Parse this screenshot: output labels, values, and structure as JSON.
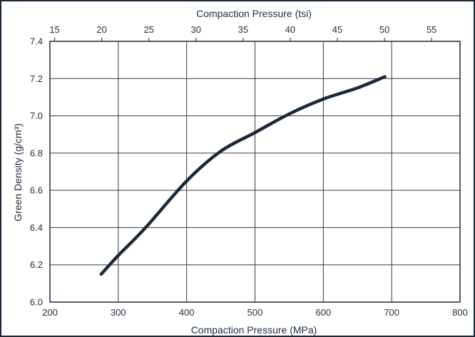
{
  "chart_data": {
    "type": "line",
    "title": "",
    "xlabel": "Compaction Pressure (MPa)",
    "xlabel_top": "Compaction Pressure (tsi)",
    "ylabel": "Green Density (g/cm³)",
    "xlim": [
      200,
      800
    ],
    "ylim": [
      6.0,
      7.4
    ],
    "x_ticks": [
      "200",
      "300",
      "400",
      "500",
      "600",
      "700",
      "800"
    ],
    "x_tick_values": [
      200,
      300,
      400,
      500,
      600,
      700,
      800
    ],
    "x_top_ticks": [
      "15",
      "20",
      "25",
      "30",
      "35",
      "40",
      "45",
      "50",
      "55"
    ],
    "x_top_tick_values": [
      15,
      20,
      25,
      30,
      35,
      40,
      45,
      50,
      55
    ],
    "tsi_to_mpa": 13.79,
    "y_ticks": [
      "6.0",
      "6.2",
      "6.4",
      "6.6",
      "6.8",
      "7.0",
      "7.2",
      "7.4"
    ],
    "y_tick_values": [
      6.0,
      6.2,
      6.4,
      6.6,
      6.8,
      7.0,
      7.2,
      7.4
    ],
    "grid": true,
    "legend": "none",
    "series": [
      {
        "color": "#1b2a3a",
        "x": [
          275,
          300,
          340,
          400,
          450,
          500,
          550,
          600,
          650,
          690
        ],
        "y": [
          6.15,
          6.25,
          6.4,
          6.65,
          6.81,
          6.91,
          7.01,
          7.09,
          7.15,
          7.21
        ]
      }
    ],
    "colors": {
      "grid": "#3a3a3a",
      "frame": "#1b2a3a",
      "line": "#1b2a3a",
      "text": "#1f2d3d"
    }
  }
}
